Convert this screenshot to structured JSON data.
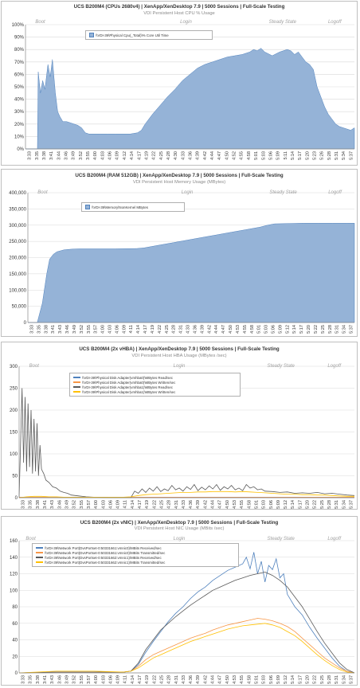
{
  "chart_data": [
    {
      "type": "area",
      "title": "UCS B200M4 (CPUs 2680v4) | XenApp/XenDesktop 7.9 | 5000 Sessions | Full-Scale Testing",
      "subtitle": "VDI Persistent Host CPU % Usage",
      "phases": [
        "Boot",
        "Login",
        "Steady State",
        "Logoff"
      ],
      "y_ticks": [
        "0%",
        "10%",
        "20%",
        "30%",
        "40%",
        "50%",
        "60%",
        "70%",
        "80%",
        "90%",
        "100%"
      ],
      "ylim": [
        0,
        100
      ],
      "x_ticks": [
        "3:33",
        "3:35",
        "3:38",
        "3:41",
        "3:44",
        "3:46",
        "3:49",
        "3:52",
        "3:55",
        "4:00",
        "4:03",
        "4:06",
        "4:09",
        "4:12",
        "4:14",
        "4:17",
        "4:19",
        "4:22",
        "4:25",
        "4:28",
        "4:30",
        "4:33",
        "4:36",
        "4:39",
        "4:42",
        "4:44",
        "4:47",
        "4:50",
        "4:52",
        "4:55",
        "4:58",
        "5:01",
        "5:03",
        "5:06",
        "5:09",
        "5:11",
        "5:14",
        "5:17",
        "5:20",
        "5:23",
        "5:26",
        "5:28",
        "5:31",
        "5:34",
        "5:37"
      ],
      "series": [
        {
          "name": "\\\\VDI-39\\Physical Cpu(_Total)\\% Core Util Time",
          "color": "#95b3d7",
          "x": [
            0,
            1,
            1.6,
            1.7,
            2,
            2.3,
            2.6,
            3,
            3.3,
            3.6,
            4,
            4.3,
            4.6,
            5,
            5.5,
            6,
            6.5,
            7,
            7.5,
            8,
            8.5,
            9,
            10,
            11,
            12,
            13,
            14,
            15,
            15.5,
            16,
            17,
            18,
            19,
            20,
            21,
            22,
            23,
            24,
            25,
            26,
            27,
            28,
            29,
            30,
            30.5,
            31,
            31.5,
            32,
            33,
            34,
            35,
            35.5,
            36,
            36.5,
            37,
            37.5,
            38,
            38.5,
            39,
            39.5,
            40,
            40.5,
            41,
            41.5,
            42,
            42.5,
            43,
            43.5,
            44
          ],
          "values": [
            0,
            0,
            0,
            62,
            45,
            55,
            48,
            68,
            58,
            72,
            45,
            30,
            26,
            22,
            22,
            21,
            20,
            19,
            17,
            13,
            12,
            12,
            12,
            12,
            12,
            12,
            12,
            13,
            15,
            20,
            28,
            35,
            42,
            48,
            55,
            60,
            65,
            68,
            70,
            72,
            74,
            75,
            76,
            78,
            80,
            79,
            81,
            78,
            75,
            78,
            80,
            79,
            76,
            78,
            74,
            70,
            68,
            64,
            50,
            42,
            34,
            28,
            24,
            20,
            18,
            17,
            16,
            15,
            17
          ]
        }
      ]
    },
    {
      "type": "area",
      "title": "UCS B200M4 (RAM 512GB) | XenApp/XenDesktop 7.9 | 5000 Sessions | Full-Scale Testing",
      "subtitle": "VDI Persistent Host Memory Usage (MBytes)",
      "phases": [
        "Boot",
        "Login",
        "Steady State",
        "Logoff"
      ],
      "y_ticks": [
        "0",
        "50,000",
        "100,000",
        "150,000",
        "200,000",
        "250,000",
        "300,000",
        "350,000",
        "400,000"
      ],
      "ylim": [
        0,
        400000
      ],
      "x_ticks": [
        "3:33",
        "3:35",
        "3:38",
        "3:41",
        "3:43",
        "3:46",
        "3:49",
        "3:52",
        "3:55",
        "3:57",
        "4:00",
        "4:03",
        "4:06",
        "4:09",
        "4:11",
        "4:14",
        "4:17",
        "4:19",
        "4:22",
        "4:25",
        "4:28",
        "4:31",
        "4:33",
        "4:36",
        "4:39",
        "4:42",
        "4:44",
        "4:47",
        "4:50",
        "4:53",
        "4:55",
        "4:58",
        "5:01",
        "5:03",
        "5:06",
        "5:09",
        "5:12",
        "5:14",
        "5:17",
        "5:20",
        "5:22",
        "5:25",
        "5:28",
        "5:31",
        "5:34",
        "5:37"
      ],
      "series": [
        {
          "name": "\\\\VDI-39\\Memory\\NonKernel MBytes",
          "color": "#95b3d7",
          "x": [
            0,
            1.3,
            2,
            2.6,
            3,
            3.5,
            4,
            5,
            6,
            7,
            10,
            12,
            15,
            16,
            18,
            20,
            22,
            24,
            26,
            28,
            30,
            32,
            33,
            34,
            36,
            38,
            40,
            42,
            44,
            45
          ],
          "values": [
            0,
            0,
            60000,
            150000,
            195000,
            210000,
            218000,
            224000,
            226000,
            227000,
            227000,
            227000,
            228000,
            230000,
            238000,
            246000,
            254000,
            262000,
            270000,
            278000,
            286000,
            294000,
            300000,
            304000,
            305000,
            306000,
            306000,
            306000,
            306000,
            306000
          ]
        }
      ]
    },
    {
      "type": "line",
      "title": "UCS B200M4 (2x vHBA) | XenApp/XenDesktop 7.9 | 5000 Sessions | Full-Scale Testing",
      "subtitle": "VDI Persistent Host HBA Usage (MBytes /sec)",
      "phases": [
        "Boot",
        "Login",
        "Steady State",
        "Logoff"
      ],
      "y_ticks": [
        "0",
        "50",
        "100",
        "150",
        "200",
        "250",
        "300"
      ],
      "ylim": [
        0,
        300
      ],
      "x_ticks": [
        "3:33",
        "3:35",
        "3:38",
        "3:41",
        "3:43",
        "3:46",
        "3:49",
        "3:52",
        "3:55",
        "3:57",
        "4:00",
        "4:03",
        "4:06",
        "4:09",
        "4:11",
        "4:14",
        "4:17",
        "4:19",
        "4:22",
        "4:25",
        "4:28",
        "4:31",
        "4:33",
        "4:36",
        "4:39",
        "4:42",
        "4:44",
        "4:47",
        "4:50",
        "4:53",
        "4:55",
        "4:58",
        "5:01",
        "5:03",
        "5:06",
        "5:09",
        "5:12",
        "5:14",
        "5:17",
        "5:20",
        "5:22",
        "5:25",
        "5:28",
        "5:31",
        "5:34",
        "5:37"
      ],
      "series": [
        {
          "name": "\\\\VDI-39\\Physical Disk Adapter(vmhba0)\\MBytes Read/sec",
          "color": "#4f81bd",
          "x": [
            0,
            45
          ],
          "values": [
            0,
            0
          ]
        },
        {
          "name": "\\\\VDI-39\\Physical Disk Adapter(vmhba0)\\MBytes Written/sec",
          "color": "#f79646",
          "x": [
            0,
            45
          ],
          "values": [
            1,
            1
          ]
        },
        {
          "name": "\\\\VDI-39\\Physical Disk Adapter(vmhba1)\\MBytes Read/sec",
          "color": "#595959",
          "x": [
            0,
            0.4,
            0.6,
            0.8,
            1.0,
            1.2,
            1.4,
            1.6,
            1.8,
            2.0,
            2.2,
            2.4,
            2.6,
            2.8,
            3.0,
            3.3,
            3.6,
            4,
            4.5,
            5,
            5.5,
            6,
            6.5,
            7,
            8,
            9,
            10,
            12,
            14,
            15,
            15.5,
            16,
            16.5,
            17,
            17.5,
            18,
            18.5,
            19,
            19.5,
            20,
            20.5,
            21,
            21.5,
            22,
            22.5,
            23,
            23.5,
            24,
            24.5,
            25,
            25.5,
            26,
            26.5,
            27,
            27.5,
            28,
            28.5,
            29,
            29.5,
            30,
            30.5,
            31,
            31.5,
            32,
            32.5,
            33,
            34,
            35,
            36,
            37,
            38,
            39,
            40,
            41,
            42,
            43,
            44,
            45
          ],
          "values": [
            0,
            250,
            80,
            230,
            60,
            215,
            70,
            200,
            55,
            180,
            60,
            170,
            50,
            120,
            65,
            55,
            40,
            35,
            25,
            22,
            15,
            12,
            10,
            6,
            4,
            2,
            1,
            0,
            0,
            0,
            15,
            10,
            20,
            12,
            22,
            15,
            25,
            14,
            20,
            16,
            28,
            18,
            22,
            15,
            25,
            19,
            30,
            16,
            24,
            18,
            27,
            20,
            30,
            17,
            25,
            20,
            28,
            18,
            22,
            16,
            30,
            22,
            25,
            18,
            20,
            15,
            14,
            12,
            13,
            10,
            11,
            10,
            12,
            9,
            10,
            8,
            6,
            5
          ]
        },
        {
          "name": "\\\\VDI-39\\Physical Disk Adapter(vmhba1)\\MBytes Written/sec",
          "color": "#ffc000",
          "x": [
            0,
            1,
            2,
            3,
            4,
            5,
            6,
            7,
            8,
            10,
            12,
            14,
            15,
            16,
            17,
            18,
            19,
            20,
            21,
            22,
            23,
            24,
            25,
            26,
            27,
            28,
            29,
            30,
            31,
            32,
            33,
            34,
            35,
            36,
            37,
            38,
            39,
            40,
            41,
            42,
            43,
            44,
            45
          ],
          "values": [
            0,
            2,
            3,
            3,
            2,
            2,
            1,
            1,
            1,
            1,
            1,
            1,
            2,
            5,
            7,
            8,
            9,
            10,
            11,
            12,
            12,
            13,
            13,
            14,
            14,
            14,
            13,
            14,
            13,
            12,
            11,
            10,
            9,
            8,
            8,
            7,
            7,
            6,
            6,
            5,
            4,
            3,
            3
          ]
        }
      ]
    },
    {
      "type": "line",
      "title": "UCS B200M4 (2x vNIC) | XenApp/XenDesktop 7.9 | 5000 Sessions | Full-Scale Testing",
      "subtitle": "VDI Persistent Host NIC Usage (MBits /sec)",
      "phases": [
        "Boot",
        "Login",
        "Steady State",
        "Logoff"
      ],
      "y_ticks": [
        "0",
        "20",
        "40",
        "60",
        "80",
        "100",
        "120",
        "140",
        "160"
      ],
      "ylim": [
        0,
        160
      ],
      "x_ticks": [
        "3:33",
        "3:35",
        "3:38",
        "3:41",
        "3:43",
        "3:46",
        "3:49",
        "3:52",
        "3:55",
        "3:57",
        "4:00",
        "4:03",
        "4:06",
        "4:09",
        "4:11",
        "4:14",
        "4:17",
        "4:19",
        "4:22",
        "4:25",
        "4:28",
        "4:31",
        "4:33",
        "4:36",
        "4:39",
        "4:42",
        "4:44",
        "4:47",
        "4:50",
        "4:53",
        "4:55",
        "4:58",
        "5:01",
        "5:03",
        "5:06",
        "5:09",
        "5:12",
        "5:14",
        "5:17",
        "5:20",
        "5:22",
        "5:25",
        "5:28",
        "5:31",
        "5:34",
        "5:37"
      ],
      "series": [
        {
          "name": "\\\\VDI-39\\Network Port(DvsPortset-0:50331661:vmnic0)\\MBits Received/sec",
          "color": "#4f81bd",
          "x": [
            0,
            5,
            10,
            14,
            15,
            16,
            17,
            18,
            19,
            20,
            21,
            22,
            23,
            24,
            25,
            26,
            27,
            28,
            29,
            30,
            30.5,
            31,
            31.5,
            32,
            32.5,
            33,
            33.5,
            34,
            34.5,
            35,
            35.5,
            36,
            37,
            38,
            39,
            40,
            41,
            42,
            43,
            44,
            45
          ],
          "values": [
            0,
            1,
            1,
            1,
            2,
            10,
            25,
            38,
            50,
            62,
            72,
            80,
            90,
            98,
            104,
            112,
            118,
            124,
            128,
            132,
            140,
            126,
            146,
            120,
            135,
            110,
            130,
            125,
            138,
            115,
            120,
            95,
            80,
            70,
            55,
            42,
            30,
            18,
            8,
            2,
            0
          ]
        },
        {
          "name": "\\\\VDI-39\\Network Port(DvsPortset-0:50331661:vmnic0)\\MBits Transmitted/sec",
          "color": "#f79646",
          "x": [
            0,
            5,
            10,
            14,
            15,
            16,
            17,
            18,
            19,
            20,
            21,
            22,
            23,
            24,
            25,
            26,
            27,
            28,
            29,
            30,
            31,
            32,
            33,
            34,
            35,
            36,
            37,
            38,
            39,
            40,
            41,
            42,
            43,
            44,
            45
          ],
          "values": [
            0,
            1,
            1,
            1,
            2,
            8,
            16,
            22,
            26,
            30,
            34,
            38,
            42,
            45,
            48,
            52,
            55,
            58,
            60,
            62,
            64,
            66,
            65,
            63,
            60,
            56,
            50,
            42,
            34,
            26,
            18,
            12,
            6,
            2,
            0
          ]
        },
        {
          "name": "\\\\VDI-39\\Network Port(DvsPortset-0:50331662:vmnic1)\\MBits Received/sec",
          "color": "#595959",
          "x": [
            0,
            5,
            10,
            14,
            15,
            16,
            17,
            18,
            19,
            20,
            21,
            22,
            23,
            24,
            25,
            26,
            27,
            28,
            29,
            30,
            31,
            32,
            33,
            34,
            35,
            36,
            37,
            38,
            39,
            40,
            41,
            42,
            43,
            44,
            45
          ],
          "values": [
            0,
            1,
            1,
            1,
            2,
            12,
            28,
            40,
            52,
            60,
            68,
            75,
            82,
            88,
            94,
            100,
            104,
            108,
            112,
            115,
            118,
            120,
            122,
            118,
            112,
            104,
            92,
            80,
            65,
            50,
            36,
            24,
            12,
            4,
            0
          ]
        },
        {
          "name": "\\\\VDI-39\\Network Port(DvsPortset-0:50331662:vmnic1)\\MBits Transmitted/sec",
          "color": "#ffc000",
          "x": [
            0,
            5,
            10,
            14,
            15,
            16,
            17,
            18,
            19,
            20,
            21,
            22,
            23,
            24,
            25,
            26,
            27,
            28,
            29,
            30,
            31,
            32,
            33,
            34,
            35,
            36,
            37,
            38,
            39,
            40,
            41,
            42,
            43,
            44,
            45
          ],
          "values": [
            0,
            2,
            2,
            1,
            2,
            6,
            12,
            18,
            22,
            26,
            30,
            34,
            38,
            41,
            44,
            47,
            50,
            53,
            55,
            57,
            58,
            59,
            60,
            58,
            55,
            50,
            45,
            38,
            30,
            22,
            15,
            9,
            4,
            1,
            0
          ]
        }
      ]
    }
  ]
}
